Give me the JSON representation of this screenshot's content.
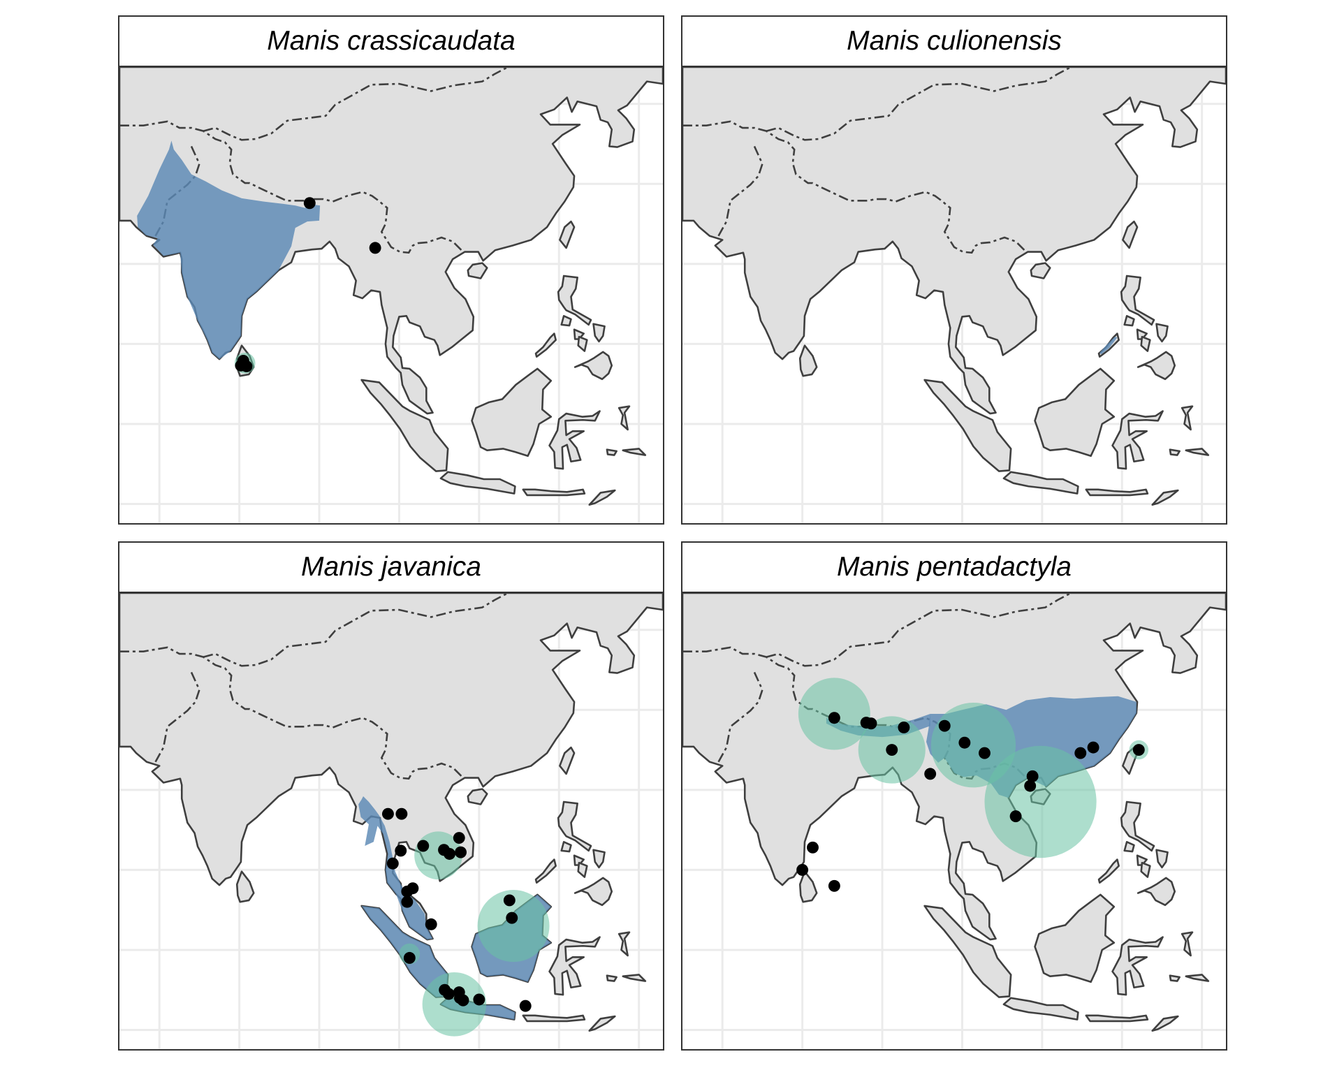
{
  "colors": {
    "land": "#e0e0e0",
    "coast": "#3f3f3f",
    "grid": "#ebebeb",
    "range": "#5b89b5",
    "buffer": "#69c3a4",
    "point": "#000000"
  },
  "panels": [
    {
      "species": "Manis crassicaudata",
      "range": [
        "india"
      ],
      "buffers": [
        [
          80.7,
          7.6,
          1.3
        ]
      ],
      "points": [
        [
          88.8,
          27.6
        ],
        [
          97.0,
          22.0
        ],
        [
          80.5,
          7.9
        ],
        [
          80.2,
          7.3
        ],
        [
          80.9,
          7.2
        ]
      ]
    },
    {
      "species": "Manis culionensis",
      "range": [
        "palawan"
      ],
      "buffers": [],
      "points": []
    },
    {
      "species": "Manis javanica",
      "range": [
        "mainland_sea",
        "sumatra",
        "borneo",
        "java"
      ],
      "buffers": [
        [
          104.9,
          11.8,
          3.0
        ],
        [
          114.3,
          3.0,
          4.5
        ],
        [
          106.9,
          -6.8,
          4.0
        ],
        [
          101.3,
          -0.5,
          1.3
        ]
      ],
      "points": [
        [
          98.6,
          17.0
        ],
        [
          100.3,
          17.0
        ],
        [
          107.5,
          14.0
        ],
        [
          103.0,
          13.0
        ],
        [
          105.6,
          12.5
        ],
        [
          106.3,
          12.0
        ],
        [
          107.7,
          12.2
        ],
        [
          100.2,
          12.4
        ],
        [
          99.2,
          10.8
        ],
        [
          101.7,
          7.7
        ],
        [
          101.0,
          7.3
        ],
        [
          101.0,
          6.0
        ],
        [
          104.0,
          3.2
        ],
        [
          113.8,
          6.2
        ],
        [
          114.1,
          4.0
        ],
        [
          101.3,
          -1.0
        ],
        [
          105.7,
          -5.0
        ],
        [
          106.2,
          -5.5
        ],
        [
          107.5,
          -5.3
        ],
        [
          107.6,
          -6.0
        ],
        [
          108.0,
          -6.3
        ],
        [
          110.0,
          -6.2
        ],
        [
          115.8,
          -7.0
        ]
      ]
    },
    {
      "species": "Manis pentadactyla",
      "range": [
        "south_china",
        "himalaya_band"
      ],
      "buffers": [
        [
          84.0,
          29.5,
          4.5
        ],
        [
          91.2,
          25.0,
          4.2
        ],
        [
          101.4,
          25.6,
          5.3
        ],
        [
          109.8,
          18.5,
          7.0
        ],
        [
          122.1,
          25.0,
          1.2
        ]
      ],
      "points": [
        [
          84.0,
          29.0
        ],
        [
          88.0,
          28.4
        ],
        [
          88.6,
          28.3
        ],
        [
          92.7,
          27.8
        ],
        [
          97.8,
          28.0
        ],
        [
          91.2,
          25.0
        ],
        [
          100.3,
          25.9
        ],
        [
          102.8,
          24.6
        ],
        [
          96.0,
          22.0
        ],
        [
          108.5,
          20.5
        ],
        [
          108.8,
          21.7
        ],
        [
          114.8,
          24.6
        ],
        [
          116.4,
          25.3
        ],
        [
          122.1,
          25.0
        ],
        [
          106.7,
          16.7
        ],
        [
          81.3,
          12.8
        ],
        [
          80.0,
          10.0
        ],
        [
          84.0,
          8.0
        ]
      ]
    }
  ]
}
